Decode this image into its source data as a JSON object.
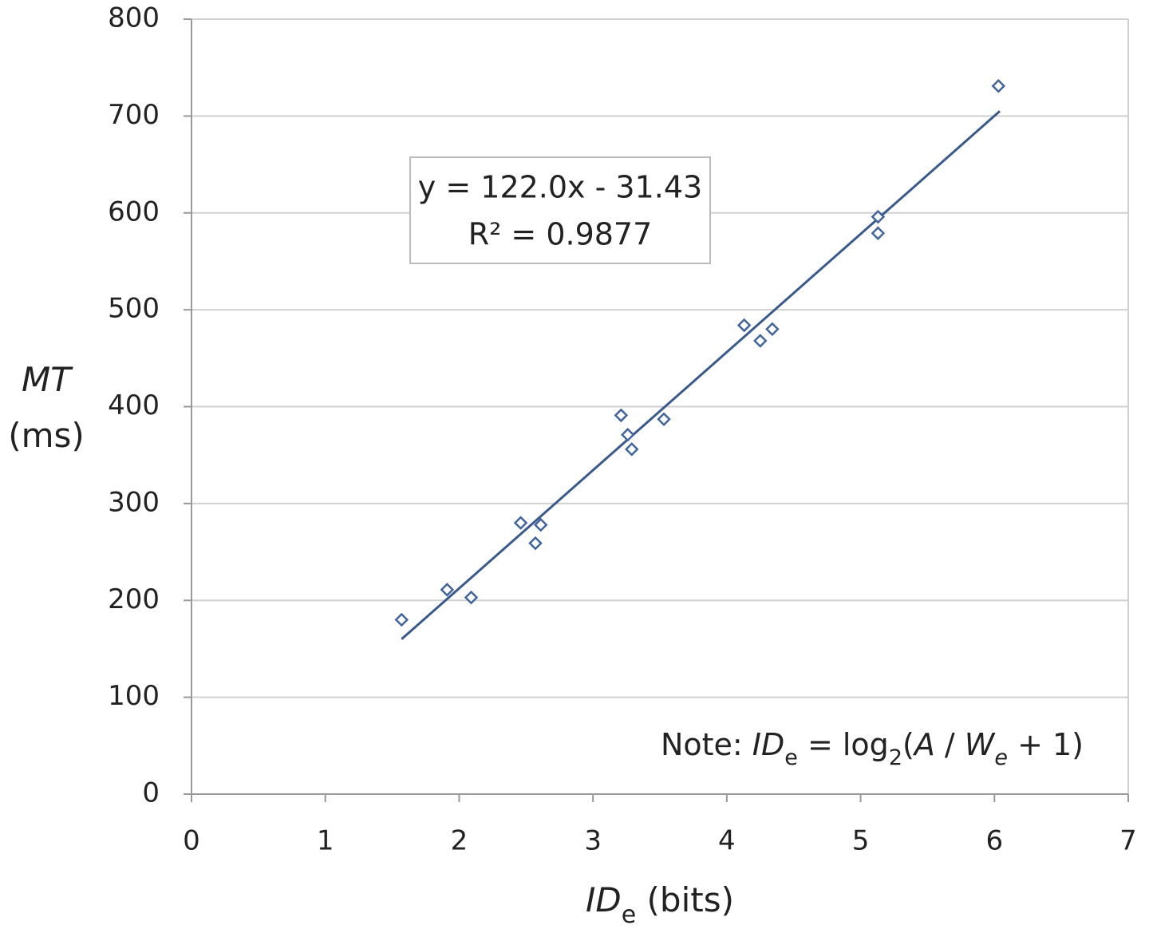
{
  "chart_data": {
    "type": "scatter",
    "x_label_parts": [
      "ID",
      "e",
      " (bits)"
    ],
    "y_label_parts": [
      "MT",
      "(ms)"
    ],
    "equation": "y = 122.0x - 31.43",
    "r_squared": "R² = 0.9877",
    "note_parts": [
      "Note: ",
      "ID",
      "e",
      " = log",
      "2",
      "(",
      "A",
      " / ",
      "W",
      "e",
      " + 1)"
    ],
    "series": [
      {
        "color": "#41659a",
        "x": [
          1.57,
          1.91,
          2.09,
          2.46,
          2.57,
          2.61,
          3.21,
          3.26,
          3.29,
          3.53,
          4.13,
          4.25,
          4.34,
          5.13,
          5.13,
          6.03
        ],
        "values": [
          180,
          211,
          203,
          280,
          259,
          278,
          391,
          371,
          356,
          387,
          484,
          468,
          480,
          596,
          579,
          731
        ]
      }
    ],
    "trendline": {
      "color": "#3a5a8c",
      "x": [
        1.57,
        6.04
      ],
      "values": [
        160,
        705
      ]
    },
    "xlim": [
      0,
      7
    ],
    "xticks": [
      0,
      1,
      2,
      3,
      4,
      5,
      6,
      7
    ],
    "ylim": [
      0,
      800
    ],
    "yticks": [
      0,
      100,
      200,
      300,
      400,
      500,
      600,
      700,
      800
    ],
    "grid": true
  }
}
